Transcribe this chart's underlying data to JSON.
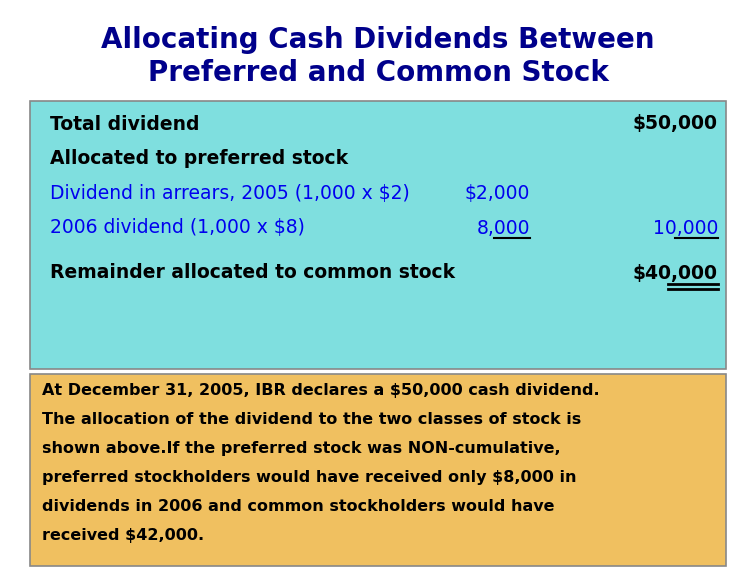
{
  "title_line1": "Allocating Cash Dividends Between",
  "title_line2": "Preferred and Common Stock",
  "title_color": "#00008B",
  "title_fontsize": 20,
  "cyan_bg": "#7FDFDF",
  "tan_bg": "#F0C060",
  "white_bg": "#FFFFFF",
  "rows": [
    {
      "label": "Total dividend",
      "col1": "",
      "col2": "$50,000",
      "bold": true,
      "color": "#000000",
      "underline_col1": false,
      "underline_col2": false,
      "double_underline_col2": false
    },
    {
      "label": "Allocated to preferred stock",
      "col1": "",
      "col2": "",
      "bold": true,
      "color": "#000000",
      "underline_col1": false,
      "underline_col2": false,
      "double_underline_col2": false
    },
    {
      "label": "Dividend in arrears, 2005 (1,000 x $2)",
      "col1": "$2,000",
      "col2": "",
      "bold": false,
      "color": "#0000EE",
      "underline_col1": false,
      "underline_col2": false,
      "double_underline_col2": false
    },
    {
      "label": "2006 dividend (1,000 x $8)",
      "col1": "8,000",
      "col2": "10,000",
      "bold": false,
      "color": "#0000EE",
      "underline_col1": true,
      "underline_col2": true,
      "double_underline_col2": false
    },
    {
      "label": "Remainder allocated to common stock",
      "col1": "",
      "col2": "$40,000",
      "bold": true,
      "color": "#000000",
      "underline_col1": false,
      "underline_col2": false,
      "double_underline_col2": true
    }
  ],
  "footnote_lines": [
    "At December 31, 2005, IBR declares a $50,000 cash dividend.",
    "The allocation of the dividend to the two classes of stock is",
    "shown above.If the preferred stock was NON-cumulative,",
    "preferred stockholders would have received only $8,000 in",
    "dividends in 2006 and common stockholders would have",
    "received $42,000."
  ],
  "footnote_color": "#000000",
  "footnote_fontsize": 11.5,
  "table_row_fontsize": 13.5
}
